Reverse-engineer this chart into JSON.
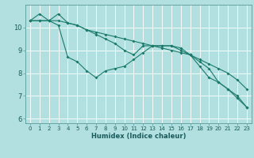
{
  "xlabel": "Humidex (Indice chaleur)",
  "background_color": "#b2e0e0",
  "grid_color": "#ffffff",
  "line_color": "#1a7a6a",
  "ylim": [
    5.8,
    11.0
  ],
  "xlim": [
    -0.5,
    23.5
  ],
  "yticks": [
    6,
    7,
    8,
    9,
    10
  ],
  "xticks": [
    0,
    1,
    2,
    3,
    4,
    5,
    6,
    7,
    8,
    9,
    10,
    11,
    12,
    13,
    14,
    15,
    16,
    17,
    18,
    19,
    20,
    21,
    22,
    23
  ],
  "line1_x": [
    0,
    1,
    2,
    3,
    4,
    5,
    6,
    7,
    8,
    9,
    10,
    11,
    12,
    13,
    14,
    15,
    16,
    17,
    18,
    19,
    20,
    21,
    22,
    23
  ],
  "line1_y": [
    10.3,
    10.6,
    10.3,
    10.1,
    8.7,
    8.5,
    8.1,
    7.8,
    8.1,
    8.2,
    8.3,
    8.6,
    8.9,
    9.2,
    9.2,
    9.2,
    9.1,
    8.8,
    8.3,
    7.8,
    7.6,
    7.3,
    6.9,
    6.5
  ],
  "line2_x": [
    0,
    1,
    2,
    3,
    4,
    5,
    6,
    7,
    8,
    9,
    10,
    11,
    12,
    13,
    14,
    15,
    16,
    17,
    18,
    19,
    20,
    21,
    22,
    23
  ],
  "line2_y": [
    10.3,
    10.3,
    10.3,
    10.3,
    10.2,
    10.1,
    9.9,
    9.8,
    9.7,
    9.6,
    9.5,
    9.4,
    9.3,
    9.2,
    9.1,
    9.0,
    8.9,
    8.8,
    8.6,
    8.4,
    8.2,
    8.0,
    7.7,
    7.3
  ],
  "line3_x": [
    0,
    1,
    2,
    3,
    4,
    5,
    6,
    7,
    8,
    9,
    10,
    11,
    12,
    13,
    14,
    15,
    16,
    17,
    18,
    19,
    20,
    21,
    22,
    23
  ],
  "line3_y": [
    10.3,
    10.3,
    10.3,
    10.6,
    10.2,
    10.1,
    9.9,
    9.7,
    9.5,
    9.3,
    9.0,
    8.8,
    9.2,
    9.2,
    9.2,
    9.2,
    9.0,
    8.8,
    8.5,
    8.2,
    7.6,
    7.3,
    7.0,
    6.5
  ],
  "tick_fontsize": 5.0,
  "xlabel_fontsize": 6.0,
  "marker_size": 2.0,
  "linewidth": 0.8
}
